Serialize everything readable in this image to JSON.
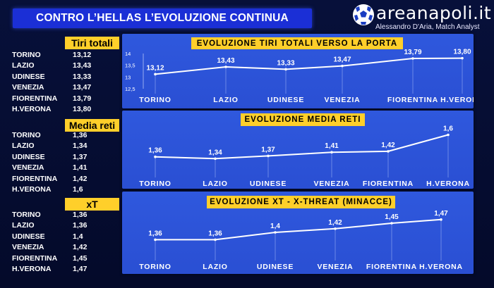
{
  "header": {
    "title": "CONTRO L’HELLAS L’EVOLUZIONE CONTINUA"
  },
  "logo": {
    "name": "areanapoli.it",
    "author": "Alessandro D'Aria, Match Analyst",
    "icon": "soccer-ball-icon"
  },
  "colors": {
    "accent_yellow": "#ffcf2a",
    "panel_blue": "#2f58dd",
    "title_blue": "#1b2fd6",
    "background": "#050b2e"
  },
  "stats": [
    {
      "header": "Tiri totali",
      "rows": [
        {
          "team": "TORINO",
          "value": "13,12"
        },
        {
          "team": "LAZIO",
          "value": "13,43"
        },
        {
          "team": "UDINESE",
          "value": "13,33"
        },
        {
          "team": "VENEZIA",
          "value": "13,47"
        },
        {
          "team": "FIORENTINA",
          "value": "13,79"
        },
        {
          "team": "H.VERONA",
          "value": "13,80"
        }
      ]
    },
    {
      "header": "Media reti",
      "rows": [
        {
          "team": "TORINO",
          "value": "1,36"
        },
        {
          "team": "LAZIO",
          "value": "1,34"
        },
        {
          "team": "UDINESE",
          "value": "1,37"
        },
        {
          "team": "VENEZIA",
          "value": "1,41"
        },
        {
          "team": "FIORENTINA",
          "value": "1,42"
        },
        {
          "team": "H.VERONA",
          "value": "1,6"
        }
      ]
    },
    {
      "header": "xT",
      "rows": [
        {
          "team": "TORINO",
          "value": "1,36"
        },
        {
          "team": "LAZIO",
          "value": "1,36"
        },
        {
          "team": "UDINESE",
          "value": "1,4"
        },
        {
          "team": "VENEZIA",
          "value": "1,42"
        },
        {
          "team": "FIORENTINA",
          "value": "1,45"
        },
        {
          "team": "H.VERONA",
          "value": "1,47"
        }
      ]
    }
  ],
  "chart_data": [
    {
      "type": "line",
      "title": "EVOLUZIONE TIRI TOTALI VERSO LA PORTA",
      "categories": [
        "TORINO",
        "LAZIO",
        "UDINESE",
        "VENEZIA",
        "FIORENTINA",
        "H.VERONA"
      ],
      "values": [
        13.12,
        13.43,
        13.33,
        13.47,
        13.79,
        13.8
      ],
      "labels": [
        "13,12",
        "13,43",
        "13,33",
        "13,47",
        "13,79",
        "13,80"
      ],
      "ylim": [
        12.5,
        14
      ],
      "yticks": [
        12.5,
        13,
        13.5,
        14
      ],
      "yticklabels": [
        "12,5",
        "13",
        "13,5",
        "14"
      ],
      "grid": false
    },
    {
      "type": "line",
      "title": "EVOLUZIONE MEDIA RETI",
      "categories": [
        "TORINO",
        "LAZIO",
        "UDINESE",
        "VENEZIA",
        "FIORENTINA",
        "H.VERONA"
      ],
      "values": [
        1.36,
        1.34,
        1.37,
        1.41,
        1.42,
        1.6
      ],
      "labels": [
        "1,36",
        "1,34",
        "1,37",
        "1,41",
        "1,42",
        "1,6"
      ],
      "ylim": [
        1.25,
        1.65
      ],
      "grid": false
    },
    {
      "type": "line",
      "title": "EVOLUZIONE XT - X-THREAT (MINACCE)",
      "categories": [
        "TORINO",
        "LAZIO",
        "UDINESE",
        "VENEZIA",
        "FIORENTINA",
        "H.VERONA"
      ],
      "values": [
        1.36,
        1.36,
        1.4,
        1.42,
        1.45,
        1.47
      ],
      "labels": [
        "1,36",
        "1,36",
        "1,4",
        "1,42",
        "1,45",
        "1,47"
      ],
      "ylim": [
        1.3,
        1.5
      ],
      "grid": false
    }
  ]
}
